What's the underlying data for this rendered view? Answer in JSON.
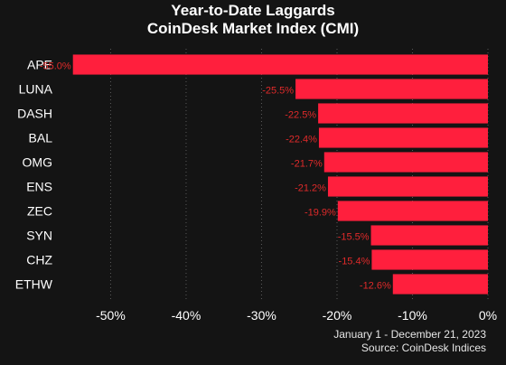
{
  "chart_data": {
    "type": "bar",
    "orientation": "horizontal",
    "title": "Year-to-Date Laggards",
    "subtitle": "CoinDesk Market Index (CMI)",
    "categories": [
      "APE",
      "LUNA",
      "DASH",
      "BAL",
      "OMG",
      "ENS",
      "ZEC",
      "SYN",
      "CHZ",
      "ETHW"
    ],
    "values": [
      -55.0,
      -25.5,
      -22.5,
      -22.4,
      -21.7,
      -21.2,
      -19.9,
      -15.5,
      -15.4,
      -12.6
    ],
    "data_labels": [
      "-55.0%",
      "-25.5%",
      "-22.5%",
      "-22.4%",
      "-21.7%",
      "-21.2%",
      "-19.9%",
      "-15.5%",
      "-15.4%",
      "-12.6%"
    ],
    "x_ticks": [
      "-50%",
      "-40%",
      "-30%",
      "-20%",
      "-10%",
      "0%"
    ],
    "x_tick_values": [
      -50,
      -40,
      -30,
      -20,
      -10,
      0
    ],
    "xlim": [
      -57,
      0
    ],
    "xlabel": "",
    "ylabel": "",
    "grid": true,
    "bar_color": "#ff1f3d",
    "label_color": "#e02a2a",
    "background": "#141414"
  },
  "footer": {
    "date_range": "January 1 - December 21, 2023",
    "source": "Source: CoinDesk Indices"
  }
}
